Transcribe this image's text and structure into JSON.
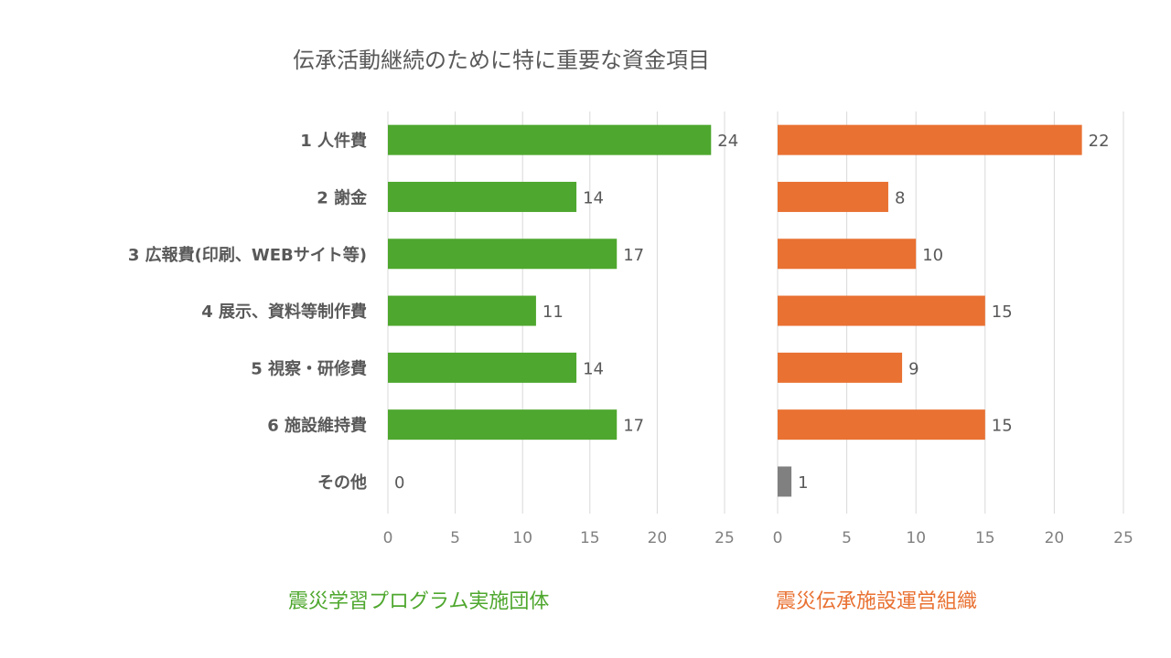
{
  "chart_data": {
    "type": "bar",
    "orientation": "horizontal",
    "title": "伝承活動継続のために特に重要な資金項目",
    "categories": [
      "1 人件費",
      "2 謝金",
      "3 広報費(印刷、WEBサイト等)",
      "4 展示、資料等制作費",
      "5 視察・研修費",
      "6 施設維持費",
      "その他"
    ],
    "panels": [
      {
        "name": "震災学習プログラム実施団体",
        "color": "#4ea72e",
        "values": [
          24,
          14,
          17,
          11,
          14,
          17,
          0
        ],
        "xlim": [
          0,
          25
        ],
        "ticks": [
          0,
          5,
          10,
          15,
          20,
          25
        ]
      },
      {
        "name": "震災伝承施設運営組織",
        "color": "#e97132",
        "other_color": "#808080",
        "values": [
          22,
          8,
          10,
          15,
          9,
          15,
          1
        ],
        "xlim": [
          0,
          25
        ],
        "ticks": [
          0,
          5,
          10,
          15,
          20,
          25
        ]
      }
    ],
    "grid": true,
    "legend": "bottom"
  }
}
